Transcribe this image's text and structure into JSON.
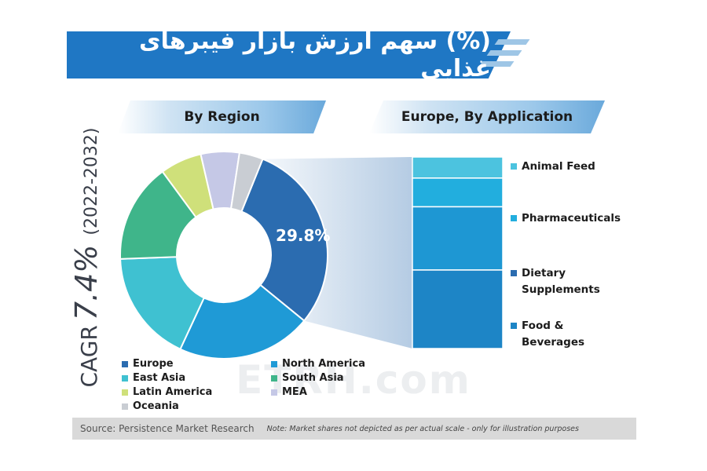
{
  "title": "(%) سهم ارزش بازار فیبرهای غذایی",
  "watermark": "ETRH.com",
  "cagr": {
    "label": "CAGR",
    "value": "7.4%",
    "period": "(2022-2032)"
  },
  "colors": {
    "title_bg": "#1f77c4",
    "europe": "#2b6cb0",
    "north_america": "#1f9ad6",
    "east_asia": "#3fc1d1",
    "south_asia": "#3fb58a",
    "latin_america": "#cfe07a",
    "mea": "#c5c8e6",
    "oceania": "#c9cdd3"
  },
  "chart_data": [
    {
      "type": "pie",
      "title": "By Region",
      "slices": [
        {
          "name": "Europe",
          "value": 29.8,
          "color": "#2b6cb0",
          "label": "29.8%"
        },
        {
          "name": "North America",
          "value": 21.0,
          "color": "#1f9ad6"
        },
        {
          "name": "East Asia",
          "value": 17.5,
          "color": "#3fc1d1"
        },
        {
          "name": "South Asia",
          "value": 15.5,
          "color": "#3fb58a"
        },
        {
          "name": "Latin America",
          "value": 6.5,
          "color": "#cfe07a"
        },
        {
          "name": "MEA",
          "value": 6.0,
          "color": "#c5c8e6"
        },
        {
          "name": "Oceania",
          "value": 3.7,
          "color": "#c9cdd3"
        }
      ],
      "start_angle_deg": 22,
      "donut": true
    },
    {
      "type": "bar",
      "title": "Europe, By Application",
      "stacked": true,
      "categories": [
        "Animal Feed",
        "Pharmaceuticals",
        "Dietary Supplements",
        "Food & Beverages"
      ],
      "values": [
        11,
        15,
        33,
        41
      ],
      "colors": [
        "#4cc3df",
        "#22aede",
        "#1e97d3",
        "#1d85c6"
      ]
    }
  ],
  "legend": [
    {
      "label": "Europe",
      "color": "#2b6cb0"
    },
    {
      "label": "North America",
      "color": "#1f9ad6"
    },
    {
      "label": "East Asia",
      "color": "#3fc1d1"
    },
    {
      "label": "South Asia",
      "color": "#3fb58a"
    },
    {
      "label": "Latin America",
      "color": "#cfe07a"
    },
    {
      "label": "MEA",
      "color": "#c5c8e6"
    },
    {
      "label": "Oceania",
      "color": "#c9cdd3"
    }
  ],
  "applications": [
    {
      "label_lines": [
        "Animal Feed"
      ],
      "color": "#4cc3df"
    },
    {
      "label_lines": [
        "Pharmaceuticals"
      ],
      "color": "#22aede"
    },
    {
      "label_lines": [
        "Dietary",
        "Supplements"
      ],
      "color": "#2b6cb0"
    },
    {
      "label_lines": [
        "Food &",
        "Beverages"
      ],
      "color": "#1d85c6"
    }
  ],
  "footer": {
    "source": "Source: Persistence Market Research",
    "note": "Note: Market shares not depicted as per actual scale - only for illustration purposes"
  }
}
